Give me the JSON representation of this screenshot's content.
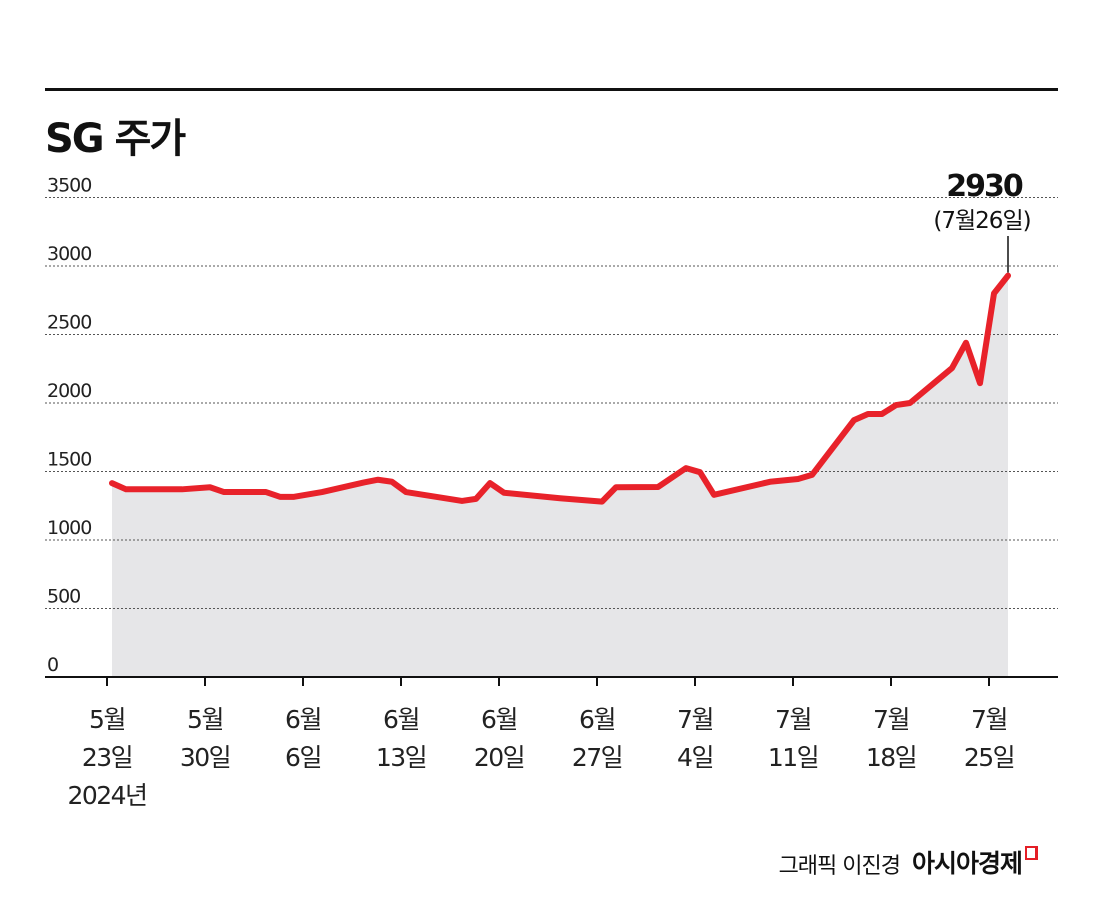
{
  "chart_data": {
    "type": "area",
    "title": "SG 주가",
    "ylim": [
      0,
      3500
    ],
    "yticks": [
      "0",
      "500",
      "1000",
      "1500",
      "2000",
      "2500",
      "3000",
      "3500"
    ],
    "grid": true,
    "xticks": [
      {
        "date": "2024-05-23",
        "line1": "5월",
        "line2": "23일",
        "line3": "2024년"
      },
      {
        "date": "2024-05-30",
        "line1": "5월",
        "line2": "30일"
      },
      {
        "date": "2024-06-06",
        "line1": "6월",
        "line2": "6일"
      },
      {
        "date": "2024-06-13",
        "line1": "6월",
        "line2": "13일"
      },
      {
        "date": "2024-06-20",
        "line1": "6월",
        "line2": "20일"
      },
      {
        "date": "2024-06-27",
        "line1": "6월",
        "line2": "27일"
      },
      {
        "date": "2024-07-04",
        "line1": "7월",
        "line2": "4일"
      },
      {
        "date": "2024-07-11",
        "line1": "7월",
        "line2": "11일"
      },
      {
        "date": "2024-07-18",
        "line1": "7월",
        "line2": "18일"
      },
      {
        "date": "2024-07-25",
        "line1": "7월",
        "line2": "25일"
      }
    ],
    "series": [
      {
        "color": "#e8222a",
        "fill": "#e6e6e8",
        "points": [
          [
            "2024-05-23",
            1415
          ],
          [
            "2024-05-24",
            1370
          ],
          [
            "2024-05-28",
            1370
          ],
          [
            "2024-05-30",
            1385
          ],
          [
            "2024-05-31",
            1350
          ],
          [
            "2024-06-03",
            1350
          ],
          [
            "2024-06-04",
            1315
          ],
          [
            "2024-06-05",
            1315
          ],
          [
            "2024-06-07",
            1350
          ],
          [
            "2024-06-10",
            1420
          ],
          [
            "2024-06-11",
            1440
          ],
          [
            "2024-06-12",
            1425
          ],
          [
            "2024-06-13",
            1350
          ],
          [
            "2024-06-17",
            1285
          ],
          [
            "2024-06-18",
            1300
          ],
          [
            "2024-06-19",
            1415
          ],
          [
            "2024-06-20",
            1345
          ],
          [
            "2024-06-24",
            1305
          ],
          [
            "2024-06-27",
            1280
          ],
          [
            "2024-06-28",
            1385
          ],
          [
            "2024-07-01",
            1387
          ],
          [
            "2024-07-03",
            1525
          ],
          [
            "2024-07-04",
            1495
          ],
          [
            "2024-07-05",
            1330
          ],
          [
            "2024-07-09",
            1425
          ],
          [
            "2024-07-11",
            1445
          ],
          [
            "2024-07-12",
            1475
          ],
          [
            "2024-07-15",
            1875
          ],
          [
            "2024-07-16",
            1920
          ],
          [
            "2024-07-17",
            1920
          ],
          [
            "2024-07-18",
            1985
          ],
          [
            "2024-07-19",
            2000
          ],
          [
            "2024-07-22",
            2255
          ],
          [
            "2024-07-23",
            2440
          ],
          [
            "2024-07-24",
            2145
          ],
          [
            "2024-07-25",
            2800
          ],
          [
            "2024-07-26",
            2930
          ]
        ]
      }
    ],
    "annotation": {
      "value": "2930",
      "date": "(7월26일)"
    }
  },
  "footer": {
    "credit": "그래픽 이진경",
    "brand": "아시아경제"
  }
}
